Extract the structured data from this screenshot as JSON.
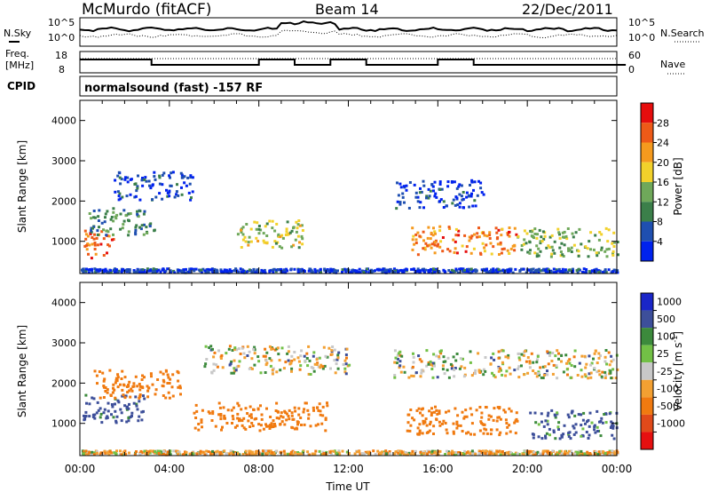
{
  "header": {
    "radar": "McMurdo (fitACF)",
    "beam": "Beam 14",
    "date": "22/Dec/2011"
  },
  "left_labels": {
    "nsky": "N.Sky",
    "freq_line1": "Freq.",
    "freq_line2": "[MHz]",
    "cpid": "CPID"
  },
  "right_labels": {
    "nsearch": "N.Search",
    "nave": "Nave"
  },
  "noise_ticks_left": [
    "10^5",
    "10^0"
  ],
  "noise_ticks_right": [
    "10^5",
    "10^0"
  ],
  "freq_ticks_left": [
    "18",
    "8"
  ],
  "nave_ticks_right": [
    "60",
    "0"
  ],
  "cpid_text": "normalsound (fast) -157 RF",
  "colors": {
    "power": [
      "#0022ee",
      "#1f4fb0",
      "#3b7f4a",
      "#6fa85a",
      "#f2d12b",
      "#f59a1e",
      "#ee5a18",
      "#e60d0d"
    ],
    "velocity_pos": [
      "#1a26c8",
      "#3d4f9a",
      "#3c8a3c",
      "#72c046"
    ],
    "velocity_neg": [
      "#c8c8c8",
      "#f3a032",
      "#f07a10",
      "#e04a1a",
      "#e61010"
    ]
  },
  "chart_data": [
    {
      "type": "heatmap",
      "title": "",
      "xlabel": "",
      "ylabel": "Slant Range [km]",
      "x_range": [
        "00:00",
        "00:00"
      ],
      "ylim": [
        200,
        4500
      ],
      "y_ticks": [
        "1000",
        "2000",
        "3000",
        "4000"
      ],
      "colorbar": {
        "label": "Power [dB]",
        "ticks": [
          "4",
          "8",
          "12",
          "16",
          "20",
          "24",
          "28"
        ],
        "range": [
          0,
          32
        ]
      },
      "features": [
        {
          "start_hour": 0.0,
          "end_hour": 24.0,
          "range_km": 300,
          "power_db": 4
        },
        {
          "start_hour": 0.1,
          "end_hour": 1.5,
          "range_km": 950,
          "power_db": 26
        },
        {
          "start_hour": 0.3,
          "end_hour": 3.3,
          "range_km": 1500,
          "power_db": 10
        },
        {
          "start_hour": 1.5,
          "end_hour": 5.0,
          "range_km": 2400,
          "power_db": 4
        },
        {
          "start_hour": 7.0,
          "end_hour": 10.0,
          "range_km": 1200,
          "power_db": 16
        },
        {
          "start_hour": 14.8,
          "end_hour": 19.5,
          "range_km": 1050,
          "power_db": 24
        },
        {
          "start_hour": 19.5,
          "end_hour": 24.0,
          "range_km": 1000,
          "power_db": 14
        },
        {
          "start_hour": 14.0,
          "end_hour": 18.0,
          "range_km": 2200,
          "power_db": 4
        }
      ]
    },
    {
      "type": "heatmap",
      "title": "",
      "xlabel": "Time UT",
      "ylabel": "Slant Range [km]",
      "x_ticks": [
        "00:00",
        "04:00",
        "08:00",
        "12:00",
        "16:00",
        "20:00",
        "00:00"
      ],
      "ylim": [
        200,
        4500
      ],
      "y_ticks": [
        "1000",
        "2000",
        "3000",
        "4000"
      ],
      "colorbar": {
        "label": "Velocity [m s^-1]",
        "ticks": [
          "1000",
          "500",
          "100",
          "25",
          "-25",
          "-100",
          "-500",
          "-1000"
        ],
        "range": [
          -1000,
          1000
        ]
      },
      "features": [
        {
          "start_hour": 0.0,
          "end_hour": 24.0,
          "range_km": 300,
          "velocity_mps": -50
        },
        {
          "start_hour": 0.1,
          "end_hour": 3.0,
          "range_km": 1400,
          "velocity_mps": 200
        },
        {
          "start_hour": 0.5,
          "end_hour": 4.5,
          "range_km": 2000,
          "velocity_mps": -300
        },
        {
          "start_hour": 5.0,
          "end_hour": 11.0,
          "range_km": 1200,
          "velocity_mps": -300
        },
        {
          "start_hour": 5.5,
          "end_hour": 12.0,
          "range_km": 2600,
          "velocity_mps": 0
        },
        {
          "start_hour": 14.5,
          "end_hour": 19.5,
          "range_km": 1100,
          "velocity_mps": -300
        },
        {
          "start_hour": 14.0,
          "end_hour": 24.0,
          "range_km": 2500,
          "velocity_mps": 0
        },
        {
          "start_hour": 20.0,
          "end_hour": 24.0,
          "range_km": 1000,
          "velocity_mps": 150
        }
      ]
    }
  ]
}
